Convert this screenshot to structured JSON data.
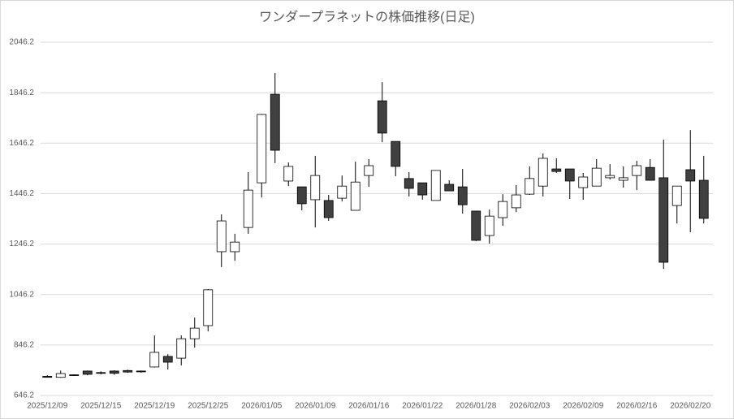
{
  "chart_data": {
    "type": "candlestick",
    "title": "ワンダープラネットの株価推移(日足)",
    "categories": [
      "2025/12/09",
      null,
      null,
      null,
      "2025/12/15",
      null,
      null,
      null,
      "2025/12/19",
      null,
      null,
      null,
      "2025/12/25",
      null,
      null,
      null,
      "2026/01/05",
      null,
      null,
      null,
      "2026/01/09",
      null,
      null,
      null,
      "2026/01/16",
      null,
      null,
      null,
      "2026/01/22",
      null,
      null,
      null,
      "2026/01/28",
      null,
      null,
      null,
      "2026/02/03",
      null,
      null,
      null,
      "2026/02/09",
      null,
      null,
      null,
      "2026/02/16",
      null,
      null,
      null,
      "2026/02/20",
      null
    ],
    "open": [
      722,
      718,
      728,
      743,
      737,
      743,
      745,
      743,
      759,
      801,
      794,
      871,
      923,
      1216,
      1216,
      1312,
      1489,
      1840,
      1496,
      1473,
      1422,
      1419,
      1428,
      1380,
      1518,
      1814,
      1653,
      1506,
      1489,
      1419,
      1483,
      1473,
      1377,
      1280,
      1351,
      1390,
      1444,
      1476,
      1544,
      1544,
      1470,
      1476,
      1509,
      1499,
      1518,
      1550,
      1509,
      1399,
      1541,
      1499
    ],
    "high": [
      726,
      745,
      730,
      745,
      742,
      746,
      748,
      745,
      884,
      810,
      884,
      955,
      1068,
      1364,
      1287,
      1531,
      1762,
      1924,
      1570,
      1473,
      1596,
      1441,
      1518,
      1573,
      1583,
      1888,
      1653,
      1531,
      1489,
      1538,
      1499,
      1544,
      1377,
      1383,
      1444,
      1480,
      1554,
      1605,
      1586,
      1544,
      1528,
      1583,
      1563,
      1554,
      1576,
      1583,
      1660,
      1476,
      1698,
      1596
    ],
    "low": [
      718,
      716,
      724,
      726,
      730,
      728,
      736,
      737,
      757,
      749,
      765,
      836,
      900,
      1155,
      1180,
      1287,
      1431,
      1567,
      1476,
      1380,
      1312,
      1338,
      1415,
      1380,
      1473,
      1650,
      1515,
      1435,
      1422,
      1419,
      1457,
      1367,
      1258,
      1248,
      1319,
      1373,
      1441,
      1435,
      1528,
      1425,
      1422,
      1476,
      1502,
      1470,
      1460,
      1499,
      1148,
      1328,
      1293,
      1328
    ],
    "close": [
      718,
      733,
      726,
      730,
      734,
      734,
      739,
      740,
      817,
      778,
      871,
      913,
      1065,
      1338,
      1254,
      1460,
      1760,
      1618,
      1554,
      1406,
      1518,
      1351,
      1476,
      1492,
      1557,
      1686,
      1554,
      1467,
      1441,
      1538,
      1457,
      1402,
      1261,
      1357,
      1415,
      1441,
      1506,
      1586,
      1534,
      1496,
      1512,
      1547,
      1518,
      1509,
      1557,
      1499,
      1174,
      1476,
      1496,
      1348
    ],
    "up_color": "#ffffff",
    "down_color": "#404040",
    "ylim": [
      646.2,
      2046.2
    ],
    "yticks": [
      646.2,
      846.2,
      1046.2,
      1246.2,
      1446.2,
      1646.2,
      1846.2,
      2046.2
    ],
    "grid": true
  }
}
